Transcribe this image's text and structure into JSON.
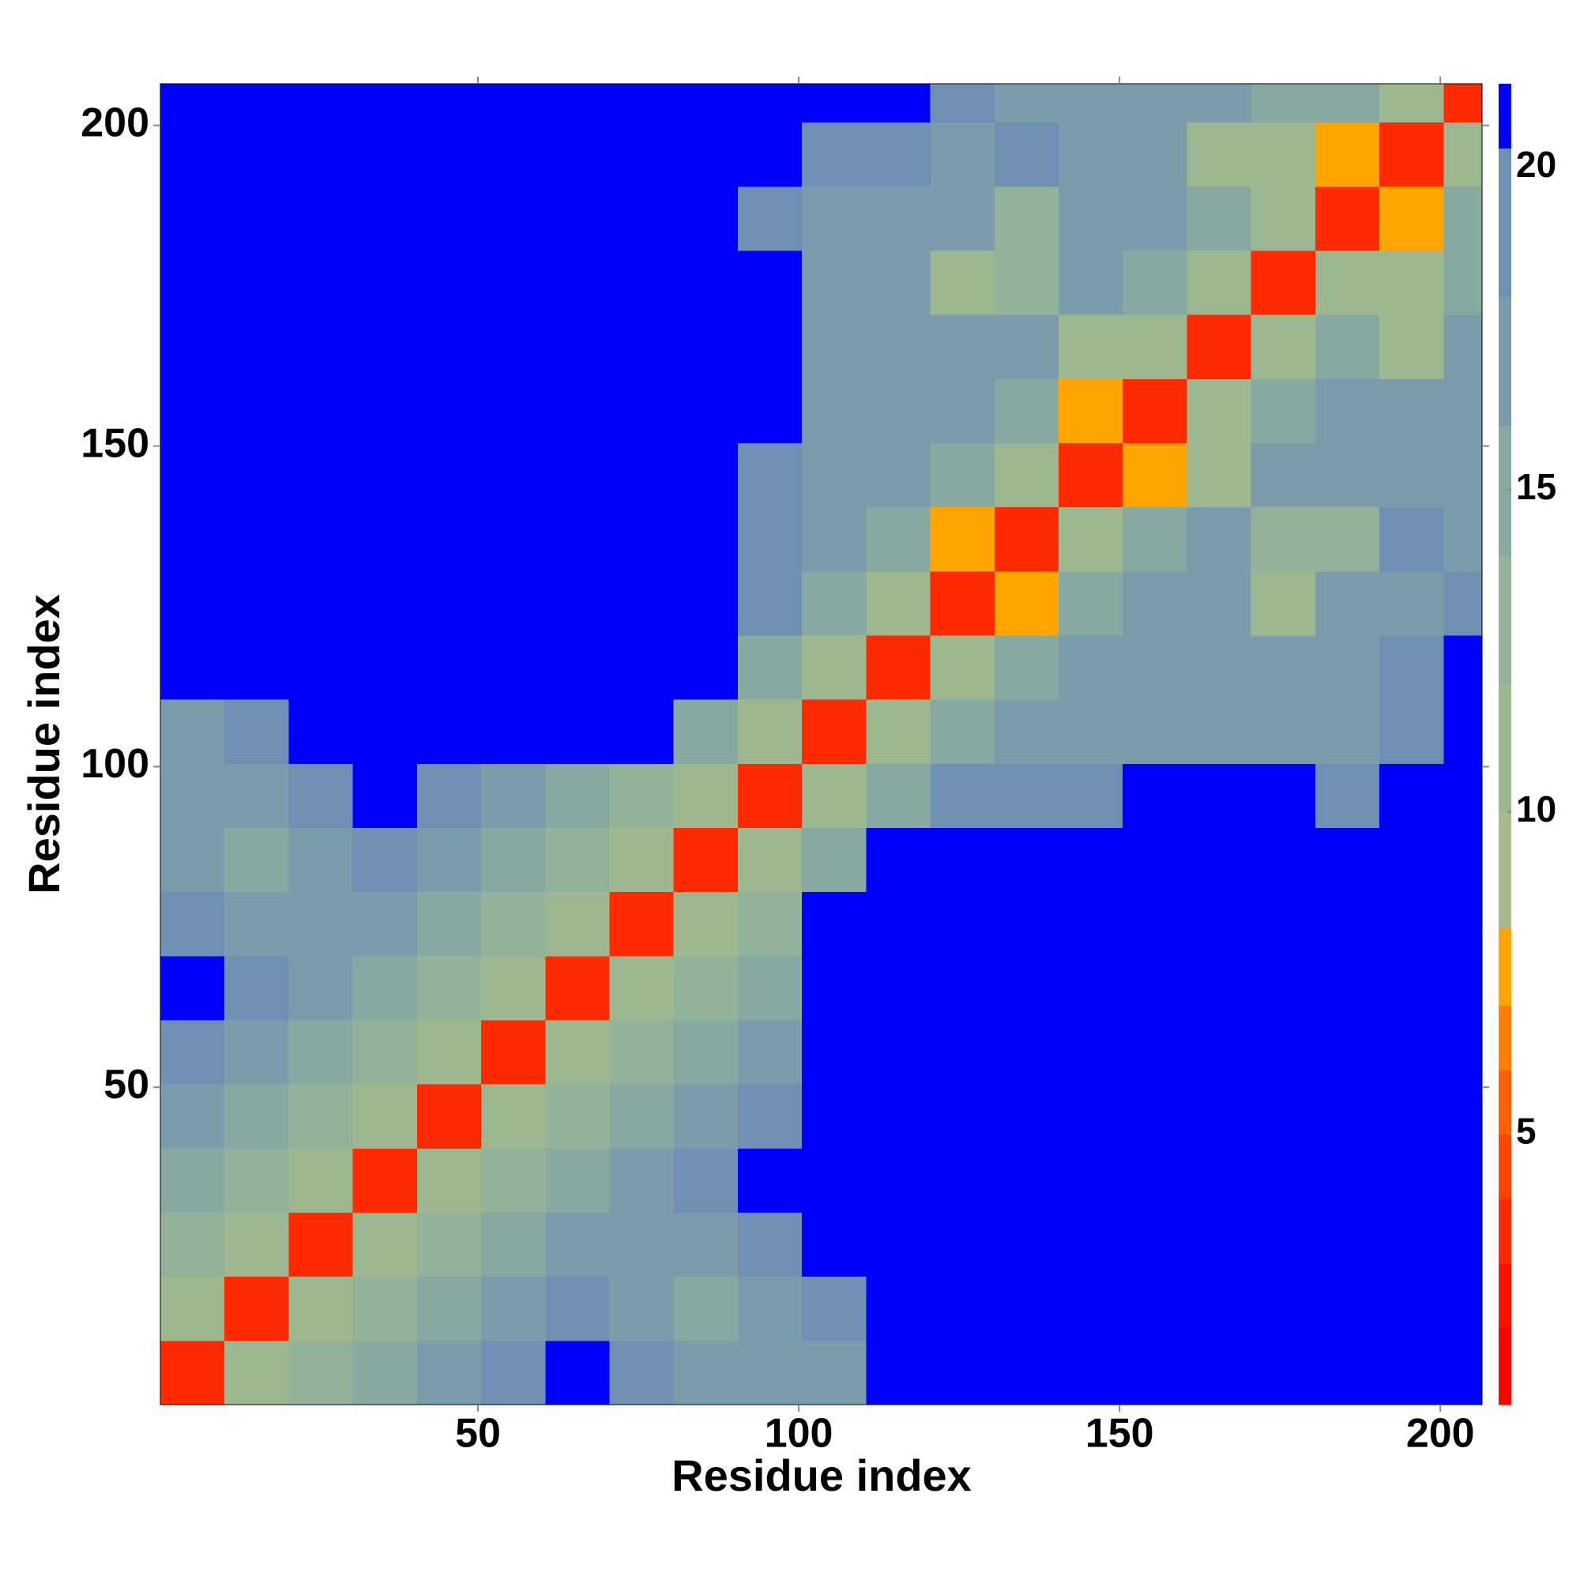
{
  "chart_data": {
    "type": "heatmap",
    "xlabel": "Residue index",
    "ylabel": "Residue index",
    "x_edges": [
      0.5,
      10.5,
      20.5,
      30.5,
      40.5,
      50.5,
      60.5,
      70.5,
      80.5,
      90.5,
      100.5,
      110.5,
      120.5,
      130.5,
      140.5,
      150.5,
      160.5,
      170.5,
      180.5,
      190.5,
      200.5,
      206.5
    ],
    "y_edges": [
      0.5,
      10.5,
      20.5,
      30.5,
      40.5,
      50.5,
      60.5,
      70.5,
      80.5,
      90.5,
      100.5,
      110.5,
      120.5,
      130.5,
      140.5,
      150.5,
      160.5,
      170.5,
      180.5,
      190.5,
      200.5,
      206.5
    ],
    "z": [
      [
        3,
        10,
        13,
        15,
        16,
        18,
        21,
        20,
        17,
        16,
        17,
        21,
        21,
        21,
        21,
        21,
        21,
        21,
        21,
        21,
        21
      ],
      [
        10,
        3,
        10,
        13,
        15,
        16,
        19,
        17,
        15,
        17,
        20,
        21,
        21,
        21,
        21,
        21,
        21,
        21,
        21,
        21,
        21
      ],
      [
        13,
        10,
        3,
        10,
        13,
        15,
        17,
        16,
        17,
        19,
        21,
        21,
        21,
        21,
        21,
        21,
        21,
        21,
        21,
        21,
        21
      ],
      [
        15,
        13,
        10,
        3,
        10,
        13,
        15,
        16,
        19,
        21,
        21,
        21,
        21,
        21,
        21,
        21,
        21,
        21,
        21,
        21,
        21
      ],
      [
        16,
        15,
        13,
        10,
        3,
        10,
        13,
        15,
        16,
        18,
        21,
        21,
        21,
        21,
        21,
        21,
        21,
        21,
        21,
        21,
        21
      ],
      [
        18,
        16,
        15,
        13,
        10,
        3,
        10,
        13,
        15,
        17,
        21,
        21,
        21,
        21,
        21,
        21,
        21,
        21,
        21,
        21,
        21
      ],
      [
        21,
        19,
        17,
        15,
        13,
        10,
        3,
        10,
        13,
        15,
        21,
        21,
        21,
        21,
        21,
        21,
        21,
        21,
        21,
        21,
        21
      ],
      [
        20,
        17,
        16,
        16,
        15,
        13,
        10,
        3,
        10,
        13,
        21,
        21,
        21,
        21,
        21,
        21,
        21,
        21,
        21,
        21,
        21
      ],
      [
        17,
        15,
        17,
        19,
        16,
        15,
        13,
        10,
        3,
        10,
        15,
        21,
        21,
        21,
        21,
        21,
        21,
        21,
        21,
        21,
        21
      ],
      [
        16,
        17,
        19,
        21,
        18,
        17,
        15,
        13,
        10,
        3,
        10,
        15,
        18,
        19,
        19,
        21,
        21,
        21,
        18,
        21,
        21
      ],
      [
        17,
        20,
        21,
        21,
        21,
        21,
        21,
        21,
        15,
        10,
        3,
        10,
        15,
        17,
        17,
        17,
        17,
        17,
        17,
        20,
        21
      ],
      [
        21,
        21,
        21,
        21,
        21,
        21,
        21,
        21,
        21,
        15,
        10,
        3,
        10,
        14,
        16,
        16,
        17,
        17,
        17,
        18,
        21
      ],
      [
        21,
        21,
        21,
        21,
        21,
        21,
        21,
        21,
        21,
        18,
        15,
        10,
        3,
        8,
        14,
        16,
        16,
        11,
        17,
        17,
        19
      ],
      [
        21,
        21,
        21,
        21,
        21,
        21,
        21,
        21,
        21,
        19,
        17,
        14,
        8,
        3,
        10,
        14,
        16,
        12,
        12,
        19,
        16
      ],
      [
        21,
        21,
        21,
        21,
        21,
        21,
        21,
        21,
        21,
        19,
        17,
        16,
        14,
        10,
        3,
        8,
        11,
        16,
        16,
        17,
        17
      ],
      [
        21,
        21,
        21,
        21,
        21,
        21,
        21,
        21,
        21,
        21,
        17,
        16,
        16,
        14,
        8,
        3,
        10,
        14,
        16,
        17,
        17
      ],
      [
        21,
        21,
        21,
        21,
        21,
        21,
        21,
        21,
        21,
        21,
        17,
        17,
        16,
        16,
        11,
        10,
        3,
        10,
        14,
        11,
        16
      ],
      [
        21,
        21,
        21,
        21,
        21,
        21,
        21,
        21,
        21,
        21,
        17,
        17,
        11,
        12,
        16,
        14,
        10,
        3,
        10,
        11,
        14
      ],
      [
        21,
        21,
        21,
        21,
        21,
        21,
        21,
        21,
        21,
        18,
        17,
        17,
        17,
        12,
        16,
        16,
        14,
        10,
        3,
        8,
        14
      ],
      [
        21,
        21,
        21,
        21,
        21,
        21,
        21,
        21,
        21,
        21,
        20,
        18,
        17,
        19,
        17,
        17,
        11,
        11,
        8,
        3,
        10
      ],
      [
        21,
        21,
        21,
        21,
        21,
        21,
        21,
        21,
        21,
        21,
        21,
        21,
        19,
        16,
        17,
        17,
        16,
        14,
        14,
        10,
        3
      ]
    ],
    "xlim": [
      0.5,
      206.5
    ],
    "ylim": [
      0.5,
      206.5
    ],
    "xticks": [
      50,
      100,
      150,
      200
    ],
    "yticks": [
      50,
      100,
      150,
      200
    ],
    "colorbar": {
      "ticks": [
        5,
        10,
        15,
        20
      ],
      "levels": [
        0.8,
        2,
        3,
        4,
        5,
        6,
        7,
        8.2,
        10,
        12,
        14,
        16,
        18,
        20.3,
        21.3
      ],
      "colors": [
        "#ff0000",
        "#ff1100",
        "#ff2a00",
        "#ff4500",
        "#ff6000",
        "#ff8000",
        "#ffa500",
        "#a8ba8a",
        "#9db790",
        "#93b29a",
        "#88a8a2",
        "#7d9cab",
        "#6f90b2",
        "#0000ff"
      ]
    }
  }
}
